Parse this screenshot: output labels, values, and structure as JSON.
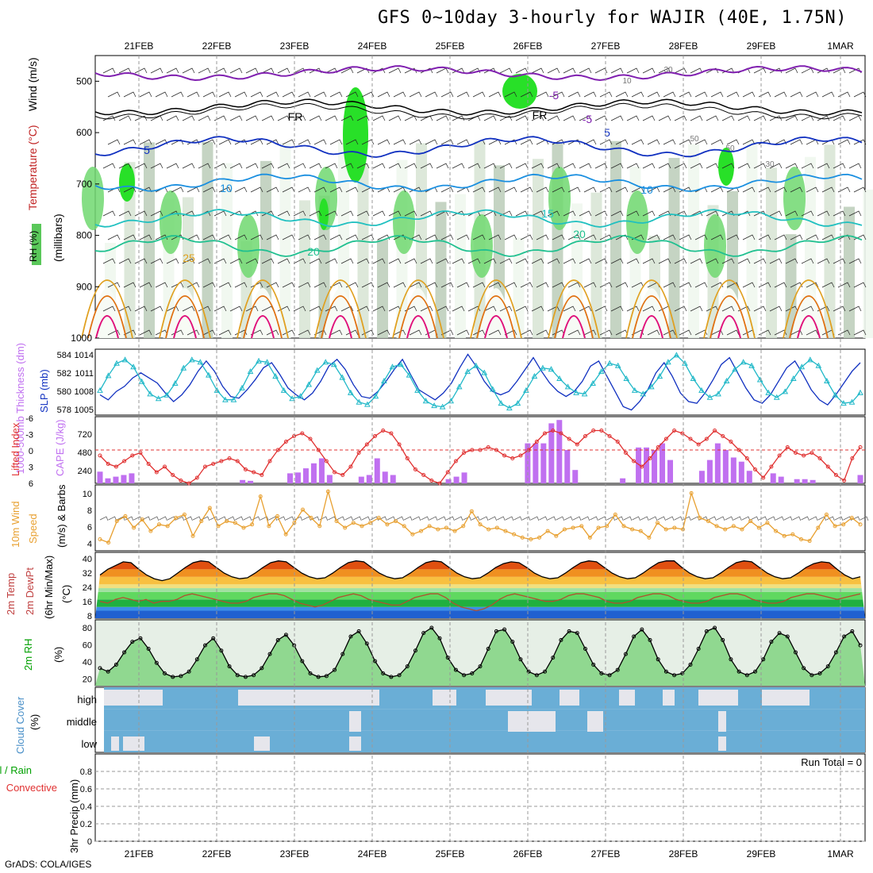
{
  "title": "GFS 0~10day 3-hourly for WAJIR (40E, 1.75N)",
  "footer": "GrADS: COLA/IGES",
  "dates": [
    "21FEB",
    "22FEB",
    "23FEB",
    "24FEB",
    "25FEB",
    "26FEB",
    "27FEB",
    "28FEB",
    "29FEB",
    "1MAR"
  ],
  "colors": {
    "cyan": "#20b8c8",
    "blue": "#1030c0",
    "lifted": "#e03030",
    "cape": "#c070f0",
    "wind": "#e8a030",
    "barb": "#606060",
    "dew": "#b05030",
    "rh": "#00c000",
    "cloudBlue": "#6aaed6",
    "cloudLight": "#e6e6ec"
  },
  "chart_data": [
    {
      "panel": "upper-air",
      "type": "heatmap",
      "ylabel_parts": [
        "RH (%)",
        "Temperature (°C)",
        "Wind (m/s)",
        "(millibars)"
      ],
      "yticks": [
        "500",
        "600",
        "700",
        "800",
        "900",
        "1000"
      ],
      "ylim": [
        1000,
        450
      ],
      "contour_labels": [
        "-5",
        "-5",
        "FR",
        "FR",
        "5",
        "5",
        "10",
        "10",
        "15",
        "20",
        "20",
        "25",
        "10",
        "30",
        "30",
        "50",
        "50"
      ]
    },
    {
      "panel": "thickness-slp",
      "type": "line",
      "ylabel_left": "1000-500mb Thickness (dm)",
      "ylabel_right": "SLP (mb)",
      "yticks_left": [
        "584",
        "582",
        "580",
        "578"
      ],
      "yticks_right": [
        "1014",
        "1011",
        "1008",
        "1005"
      ],
      "series": [
        {
          "name": "Thickness",
          "color": "#1030c0",
          "values": [
            579.2,
            578.6,
            579.6,
            580.2,
            581.2,
            581.8,
            581.2,
            580.6,
            579.4,
            578.4,
            579.2,
            580.4,
            582.0,
            583.2,
            582.0,
            580.2,
            579.0,
            578.8,
            579.8,
            581.0,
            582.4,
            583.0,
            581.6,
            580.0,
            579.2,
            578.6,
            579.4,
            580.8,
            582.6,
            583.4,
            582.2,
            580.4,
            579.0,
            578.8,
            579.6,
            580.8,
            582.2,
            583.4,
            581.6,
            579.8,
            579.2,
            578.6,
            579.4,
            580.6,
            582.4,
            584.0,
            582.6,
            580.8,
            579.6,
            579.2,
            579.6,
            580.8,
            582.2,
            583.6,
            582.0,
            580.6,
            579.6,
            579.0,
            579.6,
            580.8,
            582.6,
            583.2,
            581.4,
            579.6,
            577.8,
            577.4,
            578.4,
            579.8,
            581.8,
            583.0,
            581.4,
            579.4,
            578.4,
            578.2,
            579.4,
            581.0,
            582.8,
            583.6,
            581.8,
            580.0,
            578.6,
            578.2,
            579.2,
            580.8,
            582.4,
            583.2,
            581.6,
            579.8,
            578.6,
            578.0,
            579.2,
            580.6,
            582.0,
            583.0
          ]
        },
        {
          "name": "SLP",
          "color": "#20b8c8",
          "values": [
            1008.0,
            1010.5,
            1012.6,
            1013.2,
            1012.0,
            1009.5,
            1007.4,
            1006.6,
            1007.2,
            1009.2,
            1011.8,
            1013.2,
            1012.8,
            1010.6,
            1008.0,
            1006.4,
            1006.4,
            1008.4,
            1011.2,
            1013.0,
            1012.8,
            1010.4,
            1008.0,
            1006.6,
            1007.0,
            1009.0,
            1011.4,
            1012.8,
            1012.4,
            1010.2,
            1007.6,
            1006.0,
            1005.6,
            1007.0,
            1009.6,
            1012.0,
            1012.4,
            1010.6,
            1008.0,
            1006.2,
            1005.4,
            1005.2,
            1006.2,
            1008.6,
            1011.2,
            1012.2,
            1011.0,
            1008.2,
            1005.8,
            1005.0,
            1005.8,
            1008.0,
            1010.4,
            1011.8,
            1011.6,
            1010.0,
            1008.6,
            1007.6,
            1007.4,
            1009.2,
            1011.2,
            1012.6,
            1012.2,
            1010.0,
            1008.0,
            1007.4,
            1008.6,
            1010.4,
            1012.8,
            1014.0,
            1012.6,
            1010.0,
            1008.0,
            1006.8,
            1007.4,
            1009.6,
            1011.6,
            1012.8,
            1012.2,
            1009.8,
            1007.6,
            1006.8,
            1007.8,
            1010.0,
            1012.0,
            1013.2,
            1012.2,
            1009.6,
            1007.2,
            1005.8,
            1006.0,
            1007.6
          ]
        }
      ]
    },
    {
      "panel": "lifted-cape",
      "type": "bar",
      "ylabel_left": "Lifted Index",
      "ylabel_right": "CAPE (J/kg)",
      "yticks_left": [
        "-6",
        "-3",
        "0",
        "3",
        "6"
      ],
      "yticks_right": [
        "720",
        "480",
        "240"
      ],
      "series": [
        {
          "name": "Lifted Index",
          "color": "#e03030",
          "values": [
            1.0,
            2.5,
            3.0,
            2.0,
            1.0,
            0.5,
            2.5,
            4.0,
            3.0,
            4.5,
            5.5,
            6.0,
            5.0,
            3.0,
            2.5,
            2.0,
            1.5,
            2.0,
            3.5,
            4.0,
            4.5,
            2.0,
            0.0,
            -1.5,
            -2.5,
            -3.0,
            -2.0,
            0.0,
            2.0,
            4.0,
            4.5,
            3.0,
            0.5,
            -1.0,
            -2.5,
            -3.5,
            -3.0,
            -1.0,
            1.5,
            3.5,
            4.5,
            5.5,
            6.0,
            4.0,
            2.0,
            0.5,
            0.0,
            0.0,
            -0.5,
            0.0,
            1.0,
            1.5,
            1.0,
            0.0,
            -1.5,
            -3.0,
            -3.5,
            -3.0,
            -2.0,
            -1.0,
            -2.5,
            -3.5,
            -3.5,
            -2.5,
            -1.5,
            0.5,
            2.0,
            3.0,
            1.5,
            -0.5,
            -2.0,
            -3.5,
            -3.0,
            -2.0,
            -1.0,
            -2.0,
            -3.5,
            -2.5,
            -1.5,
            0.0,
            1.5,
            3.5,
            5.0,
            3.0,
            1.0,
            -0.5,
            0.5,
            1.0,
            0.5,
            1.5,
            3.0,
            4.5,
            5.5,
            1.5,
            -0.5
          ]
        },
        {
          "name": "CAPE",
          "color": "#c070f0",
          "values": [
            140,
            60,
            80,
            100,
            120,
            0,
            0,
            0,
            0,
            0,
            0,
            0,
            0,
            0,
            0,
            0,
            0,
            0,
            40,
            30,
            0,
            0,
            0,
            0,
            120,
            130,
            180,
            240,
            300,
            100,
            0,
            0,
            0,
            80,
            100,
            300,
            140,
            100,
            0,
            0,
            0,
            0,
            0,
            0,
            50,
            80,
            130,
            0,
            0,
            0,
            0,
            0,
            0,
            0,
            480,
            480,
            480,
            720,
            760,
            400,
            160,
            0,
            0,
            0,
            0,
            0,
            60,
            0,
            430,
            430,
            400,
            480,
            280,
            0,
            0,
            0,
            150,
            280,
            480,
            400,
            310,
            260,
            150,
            0,
            0,
            120,
            80,
            0,
            50,
            50,
            40,
            0,
            0,
            0,
            0,
            0,
            100
          ]
        }
      ]
    },
    {
      "panel": "wind",
      "type": "line",
      "ylabel": "10m Wind Speed & Barbs (m/s)",
      "yticks": [
        "10",
        "8",
        "6",
        "4"
      ],
      "series": [
        {
          "name": "10m Wind Speed",
          "color": "#e8a030",
          "values": [
            4.4,
            4.0,
            6.6,
            7.2,
            5.8,
            6.8,
            5.4,
            6.2,
            6.0,
            7.0,
            7.4,
            4.8,
            6.6,
            8.2,
            6.0,
            6.6,
            6.4,
            5.8,
            6.2,
            9.6,
            6.0,
            7.2,
            5.0,
            6.4,
            8.0,
            7.0,
            6.0,
            10.2,
            6.6,
            5.8,
            6.4,
            6.0,
            6.4,
            7.0,
            6.2,
            6.6,
            6.0,
            5.0,
            5.4,
            6.0,
            5.6,
            5.8,
            5.4,
            6.0,
            7.8,
            6.2,
            5.6,
            5.8,
            5.4,
            5.0,
            4.6,
            4.4,
            4.6,
            5.4,
            4.8,
            5.6,
            5.8,
            6.0,
            4.6,
            5.8,
            6.0,
            7.4,
            6.0,
            5.6,
            5.4,
            4.6,
            6.4,
            5.6,
            5.8,
            5.6,
            10.0,
            7.0,
            6.6,
            6.0,
            5.6,
            6.0,
            5.6,
            6.6,
            5.8,
            6.4,
            5.4,
            4.8,
            5.0,
            4.4,
            4.2,
            5.8,
            7.4,
            6.0,
            6.2,
            7.0,
            6.2
          ]
        }
      ]
    },
    {
      "panel": "temperature",
      "type": "area",
      "ylabel": "2m Temp 2m DewPt (6hr Min/Max) (°C)",
      "yticks": [
        "40",
        "32",
        "24",
        "16",
        "8"
      ],
      "series": [
        {
          "name": "2m Temp",
          "color": "#000000",
          "values": [
            29,
            32,
            34,
            36,
            35.5,
            32,
            29,
            27,
            26,
            27,
            30,
            33,
            35.5,
            36.5,
            36,
            33,
            30,
            28,
            27,
            27.5,
            30,
            33,
            35.5,
            36.5,
            36,
            33,
            30,
            28,
            27,
            27.5,
            30,
            33,
            35.5,
            36.5,
            36,
            33,
            30,
            28,
            27,
            27.5,
            30,
            33,
            35.5,
            36.5,
            36,
            33,
            30,
            28,
            27,
            27.5,
            30,
            33,
            35,
            36,
            35.5,
            33,
            30,
            28,
            27,
            27.5,
            30,
            33,
            35.5,
            36.5,
            36,
            33,
            30,
            28,
            27,
            27.5,
            30,
            33,
            35.5,
            36.5,
            36.5,
            33,
            30,
            28,
            27,
            27.5,
            30,
            33,
            35.5,
            36.5,
            36,
            33,
            30,
            28,
            27,
            27.5,
            30,
            33,
            35,
            36,
            35.5,
            32,
            29,
            27,
            28
          ]
        },
        {
          "name": "2m DewPt",
          "color": "#b05030",
          "values": [
            15,
            14,
            16,
            17,
            16,
            15,
            16,
            14,
            15,
            15,
            16,
            18,
            19,
            18,
            17,
            16,
            15,
            14,
            14,
            15,
            17,
            18,
            19,
            19,
            18,
            16,
            14,
            13,
            12,
            13,
            15,
            17,
            18,
            19,
            18,
            16,
            15,
            14,
            13,
            13,
            15,
            17,
            18,
            19,
            19,
            17,
            14,
            12,
            11,
            10,
            11,
            13,
            16,
            18,
            19,
            18,
            17,
            16,
            15,
            15,
            16,
            18,
            19,
            19,
            18,
            17,
            15,
            14,
            14,
            15,
            17,
            18,
            19,
            19,
            18,
            16,
            15,
            14,
            14,
            15,
            17,
            18,
            19,
            19,
            18,
            16,
            15,
            14,
            14,
            15,
            17,
            18,
            19,
            19,
            18,
            17,
            16,
            17,
            18,
            19
          ]
        }
      ]
    },
    {
      "panel": "rh",
      "type": "area",
      "ylabel": "2m RH (%)",
      "yticks": [
        "80",
        "60",
        "40",
        "20"
      ],
      "series": [
        {
          "name": "2m RH",
          "color": "#00c000",
          "values": [
            30,
            26,
            34,
            48,
            60,
            64,
            52,
            36,
            24,
            20,
            21,
            26,
            40,
            56,
            64,
            50,
            32,
            22,
            20,
            22,
            30,
            46,
            62,
            68,
            56,
            38,
            24,
            20,
            21,
            28,
            46,
            66,
            72,
            58,
            38,
            24,
            20,
            22,
            32,
            50,
            70,
            76,
            64,
            42,
            28,
            22,
            24,
            32,
            52,
            72,
            74,
            60,
            40,
            26,
            22,
            26,
            42,
            62,
            72,
            70,
            52,
            34,
            24,
            22,
            28,
            46,
            66,
            74,
            62,
            40,
            26,
            22,
            24,
            34,
            52,
            72,
            76,
            62,
            40,
            26,
            22,
            26,
            40,
            60,
            70,
            66,
            48,
            30,
            22,
            24,
            32,
            48,
            66,
            72,
            56
          ]
        }
      ]
    },
    {
      "panel": "cloud",
      "type": "heatmap",
      "ylabel": "Cloud Cover (%)",
      "levels": [
        "high",
        "middle",
        "low"
      ]
    },
    {
      "panel": "precip",
      "type": "bar",
      "ylabel": "3hr Precip (mm)",
      "legend": [
        "Total / Rain",
        "Convective"
      ],
      "yticks": [
        "0.8",
        "0.6",
        "0.4",
        "0.2",
        "0"
      ],
      "ylim": [
        0,
        1
      ],
      "run_total": "Run Total = 0",
      "values": []
    }
  ]
}
